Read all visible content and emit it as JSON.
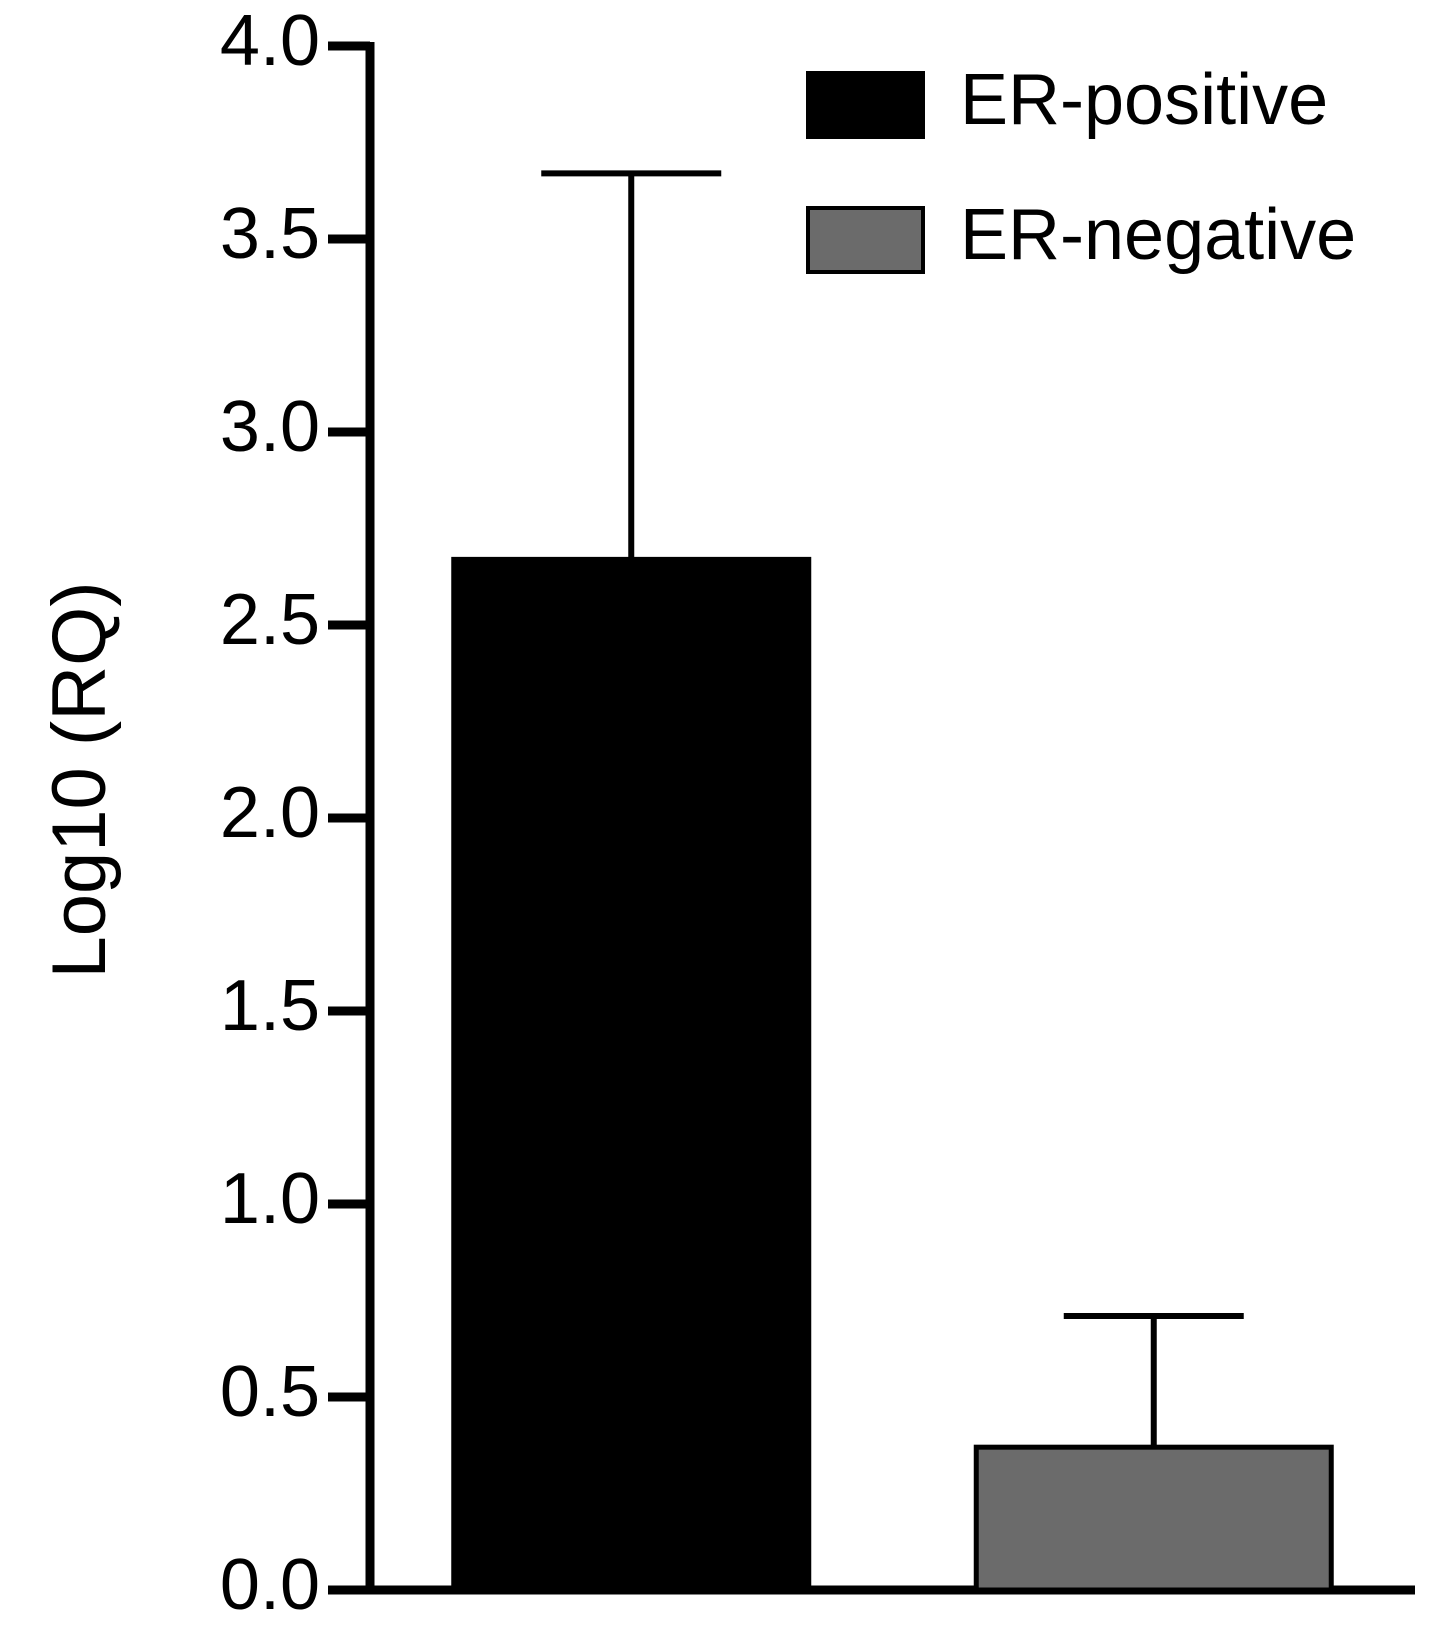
{
  "chart_data": {
    "type": "bar",
    "y_label": "Log10 (RQ)",
    "categories": [
      null
    ],
    "series": [
      {
        "name": "ER-positive",
        "color": "#000000",
        "values": [
          2.67
        ],
        "errors": [
          1.0
        ]
      },
      {
        "name": "ER-negative",
        "color": "#6b6b6b",
        "values": [
          0.37
        ],
        "errors": [
          0.34
        ]
      }
    ],
    "ylim": [
      0,
      4
    ],
    "yticks": [
      {
        "value": 0,
        "label": "0.0"
      },
      0.5,
      {
        "value": 1,
        "label": "1.0"
      },
      1.5,
      {
        "value": 2,
        "label": "2.0"
      },
      2.5,
      {
        "value": 3,
        "label": "3.0"
      },
      3.5,
      {
        "value": 4,
        "label": "4.0"
      }
    ],
    "legend": "top-right"
  }
}
